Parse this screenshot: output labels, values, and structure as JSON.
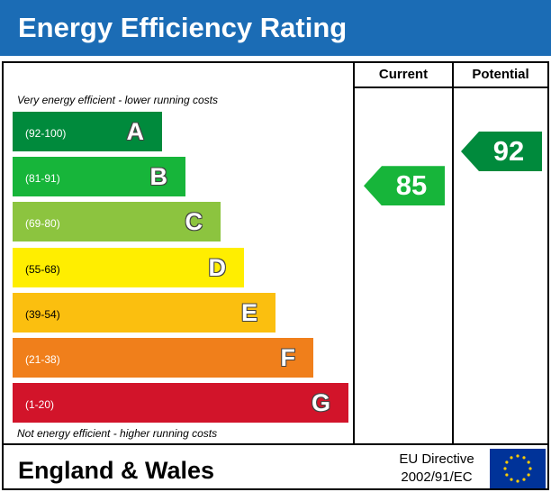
{
  "header": {
    "title": "Energy Efficiency Rating"
  },
  "columns": {
    "current": "Current",
    "potential": "Potential"
  },
  "notes": {
    "top": "Very energy efficient - lower running costs",
    "bottom": "Not energy efficient - higher running costs"
  },
  "footer": {
    "region": "England & Wales",
    "directive_line1": "EU Directive",
    "directive_line2": "2002/91/EC",
    "flag_icon": "eu-flag-icon"
  },
  "chart_data": {
    "type": "bar",
    "categories": [
      "A",
      "B",
      "C",
      "D",
      "E",
      "F",
      "G"
    ],
    "ranges": [
      "(92-100)",
      "(81-91)",
      "(69-80)",
      "(55-68)",
      "(39-54)",
      "(21-38)",
      "(1-20)"
    ],
    "range_bounds": [
      [
        92,
        100
      ],
      [
        81,
        91
      ],
      [
        69,
        80
      ],
      [
        55,
        68
      ],
      [
        39,
        54
      ],
      [
        21,
        38
      ],
      [
        1,
        20
      ]
    ],
    "colors": [
      "#008a3c",
      "#17b53a",
      "#8cc43f",
      "#ffee00",
      "#fbbf0f",
      "#f07f1b",
      "#d2142a"
    ],
    "current": {
      "value": 85,
      "band": "B",
      "color": "#17b53a"
    },
    "potential": {
      "value": 92,
      "band": "A",
      "color": "#008a3c"
    }
  }
}
